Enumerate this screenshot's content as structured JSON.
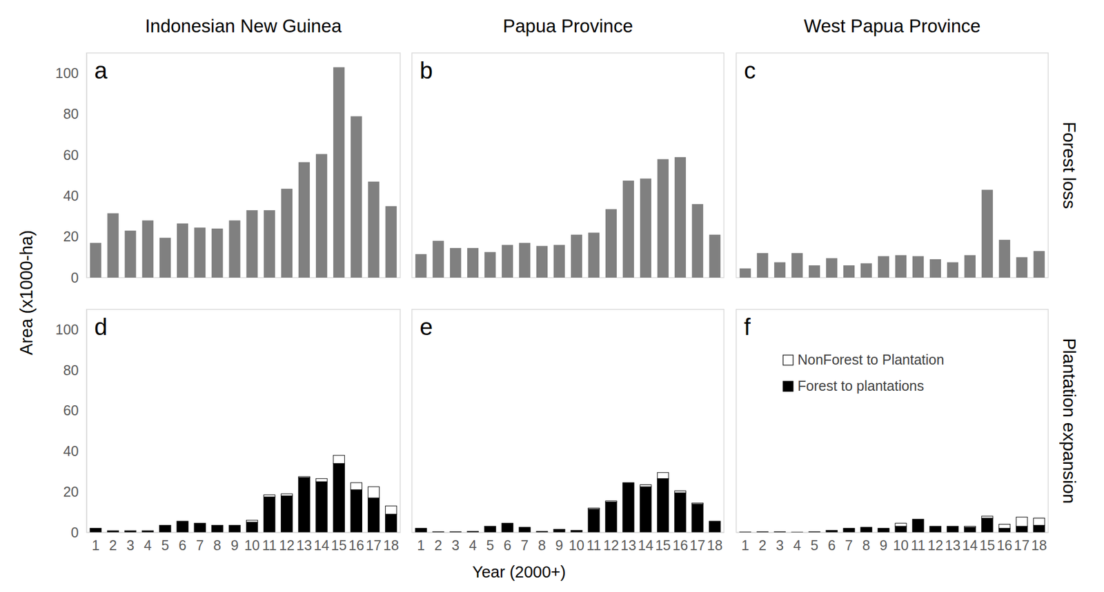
{
  "chart_data": [
    {
      "type": "bar",
      "title": "Indonesian New Guinea",
      "panel_label": "a",
      "categories": [
        1,
        2,
        3,
        4,
        5,
        6,
        7,
        8,
        9,
        10,
        11,
        12,
        13,
        14,
        15,
        16,
        17,
        18
      ],
      "values": [
        17,
        31.5,
        23,
        28,
        19.5,
        26.5,
        24.5,
        24,
        28,
        33,
        33,
        43.5,
        56.5,
        60.5,
        103,
        79,
        47,
        35
      ],
      "color": "#808080",
      "ylim": [
        0,
        110
      ],
      "yticks": [
        0,
        20,
        40,
        60,
        80,
        100
      ],
      "tick_labels": "y"
    },
    {
      "type": "bar",
      "title": "Papua Province",
      "panel_label": "b",
      "categories": [
        1,
        2,
        3,
        4,
        5,
        6,
        7,
        8,
        9,
        10,
        11,
        12,
        13,
        14,
        15,
        16,
        17,
        18
      ],
      "values": [
        11.5,
        18,
        14.5,
        14.5,
        12.5,
        16,
        17,
        15.5,
        16,
        21,
        22,
        33.5,
        47.5,
        48.5,
        58,
        59,
        36,
        21
      ],
      "color": "#808080",
      "ylim": [
        0,
        110
      ],
      "tick_labels": false
    },
    {
      "type": "bar",
      "title": "West Papua Province",
      "panel_label": "c",
      "categories": [
        1,
        2,
        3,
        4,
        5,
        6,
        7,
        8,
        9,
        10,
        11,
        12,
        13,
        14,
        15,
        16,
        17,
        18
      ],
      "values": [
        4.5,
        12,
        7.5,
        12,
        6,
        9.5,
        6,
        7,
        10.5,
        11,
        10.5,
        9,
        7.5,
        11,
        43,
        18.5,
        10,
        13
      ],
      "color": "#808080",
      "ylim": [
        0,
        110
      ],
      "tick_labels": false
    },
    {
      "type": "bar",
      "panel_label": "d",
      "stacked": true,
      "categories": [
        1,
        2,
        3,
        4,
        5,
        6,
        7,
        8,
        9,
        10,
        11,
        12,
        13,
        14,
        15,
        16,
        17,
        18
      ],
      "series": [
        {
          "color": "#000000",
          "values": [
            2,
            0.8,
            0.8,
            0.8,
            3.5,
            5.5,
            4.5,
            3.5,
            3.5,
            5,
            17.5,
            18,
            27,
            25,
            34,
            21,
            17,
            9
          ]
        },
        {
          "color": "#ffffff",
          "values": [
            0,
            0,
            0,
            0,
            0,
            0,
            0,
            0,
            0,
            1,
            1,
            1,
            0.5,
            1.5,
            4,
            3.5,
            5.5,
            4
          ]
        }
      ],
      "ylim": [
        0,
        110
      ],
      "yticks": [
        0,
        20,
        40,
        60,
        80,
        100
      ]
    },
    {
      "type": "bar",
      "panel_label": "e",
      "stacked": true,
      "categories": [
        1,
        2,
        3,
        4,
        5,
        6,
        7,
        8,
        9,
        10,
        11,
        12,
        13,
        14,
        15,
        16,
        17,
        18
      ],
      "series": [
        {
          "color": "#000000",
          "values": [
            2,
            0.3,
            0.3,
            0.5,
            3,
            4.5,
            2.5,
            0.5,
            1.5,
            1,
            11.5,
            15,
            24.5,
            22.5,
            26.5,
            19.5,
            14,
            5.5
          ]
        },
        {
          "color": "#ffffff",
          "values": [
            0,
            0,
            0,
            0,
            0,
            0,
            0,
            0,
            0,
            0,
            0.5,
            0.5,
            0,
            1,
            3,
            1,
            0.5,
            0
          ]
        }
      ],
      "ylim": [
        0,
        110
      ],
      "tick_labels": "x"
    },
    {
      "type": "bar",
      "panel_label": "f",
      "stacked": true,
      "legend": "upper left",
      "categories": [
        1,
        2,
        3,
        4,
        5,
        6,
        7,
        8,
        9,
        10,
        11,
        12,
        13,
        14,
        15,
        16,
        17,
        18
      ],
      "series": [
        {
          "name": "Forest to plantations",
          "color": "#000000",
          "values": [
            0.2,
            0.3,
            0.3,
            0.1,
            0.3,
            1,
            2,
            2.5,
            2,
            3,
            6.5,
            3,
            3,
            2.5,
            7,
            2,
            3,
            3.5
          ]
        },
        {
          "name": "NonForest to Plantation",
          "color": "#ffffff",
          "values": [
            0,
            0,
            0,
            0,
            0,
            0,
            0,
            0,
            0,
            1.5,
            0,
            0,
            0,
            0.5,
            1,
            2,
            4.5,
            3.5
          ]
        }
      ],
      "ylim": [
        0,
        110
      ],
      "tick_labels": "x"
    }
  ],
  "figure": {
    "y_label": "Area (x1000-ha)",
    "x_label": "Year (2000+)",
    "row_labels": [
      "Forest loss",
      "Plantation expansion"
    ]
  }
}
